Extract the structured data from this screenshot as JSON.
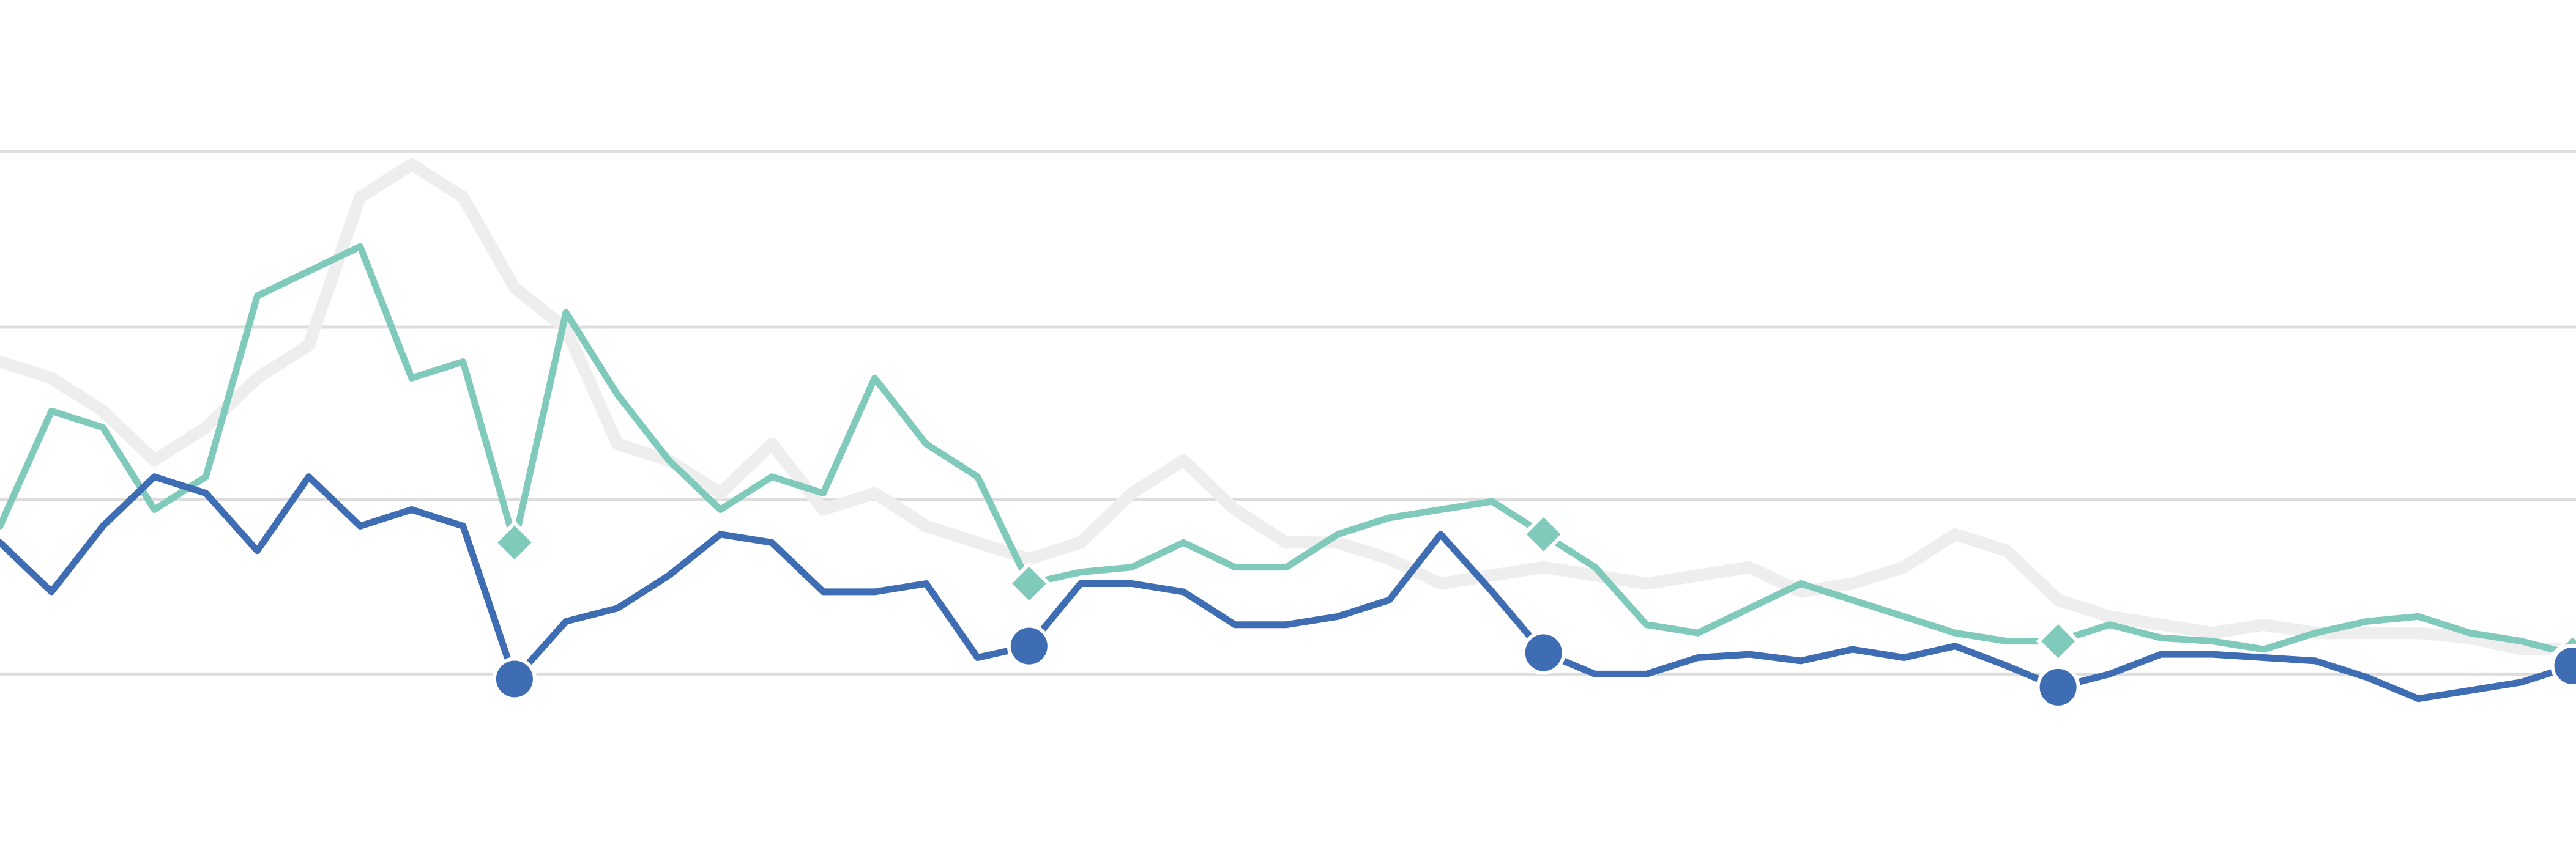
{
  "chart_data": {
    "type": "line",
    "x": [
      0,
      2,
      4,
      6,
      8,
      10,
      12,
      14,
      16,
      18,
      20,
      22,
      24,
      26,
      28,
      30,
      32,
      34,
      36,
      38,
      40,
      42,
      44,
      46,
      48,
      50,
      52,
      54,
      56,
      58,
      60,
      62,
      64,
      66,
      68,
      70,
      72,
      74,
      76,
      78,
      80,
      82,
      84,
      86,
      88,
      90,
      92,
      94,
      96,
      98,
      100
    ],
    "xlim": [
      0,
      100.13
    ],
    "ylim": [
      -104,
      410
    ],
    "yticks": [
      0,
      106,
      211,
      318
    ],
    "grid": true,
    "grid_color": "#dddddd",
    "series": [
      {
        "color": "#eeeeee",
        "width": 20,
        "marker": null,
        "marker_every": null,
        "values": [
          190,
          180,
          160,
          130,
          150,
          180,
          200,
          290,
          310,
          290,
          235,
          210,
          140,
          130,
          110,
          140,
          100,
          110,
          90,
          80,
          70,
          80,
          110,
          130,
          100,
          80,
          80,
          70,
          55,
          60,
          65,
          60,
          55,
          60,
          65,
          50,
          55,
          65,
          85,
          75,
          45,
          35,
          30,
          25,
          30,
          25,
          25,
          25,
          22,
          15,
          15
        ]
      },
      {
        "color": "#7fcabb",
        "width": 11,
        "marker": "diamond",
        "marker_every": 10,
        "values": [
          90,
          160,
          150,
          100,
          120,
          230,
          245,
          260,
          180,
          190,
          80,
          220,
          170,
          130,
          100,
          120,
          110,
          180,
          140,
          120,
          55,
          62,
          65,
          80,
          65,
          65,
          85,
          95,
          100,
          105,
          85,
          65,
          30,
          25,
          40,
          55,
          45,
          35,
          25,
          20,
          20,
          30,
          22,
          20,
          15,
          25,
          32,
          35,
          25,
          20,
          12
        ]
      },
      {
        "color": "#3f6db3",
        "width": 11,
        "marker": "circle",
        "marker_every": 10,
        "values": [
          80,
          50,
          90,
          120,
          110,
          75,
          120,
          90,
          100,
          90,
          -3,
          32,
          40,
          60,
          85,
          80,
          50,
          50,
          55,
          10,
          17,
          55,
          55,
          50,
          30,
          30,
          35,
          45,
          85,
          50,
          13,
          0,
          0,
          10,
          12,
          8,
          15,
          10,
          17,
          5,
          -8,
          0,
          12,
          12,
          10,
          8,
          -2,
          -15,
          -10,
          -5,
          5
        ]
      }
    ]
  }
}
